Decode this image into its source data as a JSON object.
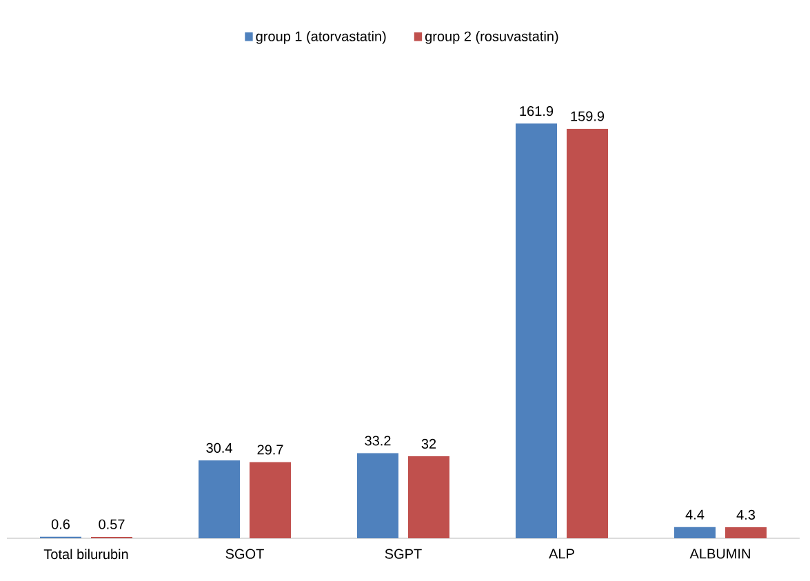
{
  "chart_data": {
    "type": "bar",
    "categories": [
      "Total bilurubin",
      "SGOT",
      "SGPT",
      "ALP",
      "ALBUMIN"
    ],
    "series": [
      {
        "name": "group 1 (atorvastatin)",
        "color": "#4f81bd",
        "values": [
          0.6,
          30.4,
          33.2,
          161.9,
          4.4
        ]
      },
      {
        "name": "group 2 (rosuvastatin)",
        "color": "#c0504d",
        "values": [
          0.57,
          29.7,
          32,
          159.9,
          4.3
        ]
      }
    ],
    "data_labels": true,
    "legend": "top"
  }
}
